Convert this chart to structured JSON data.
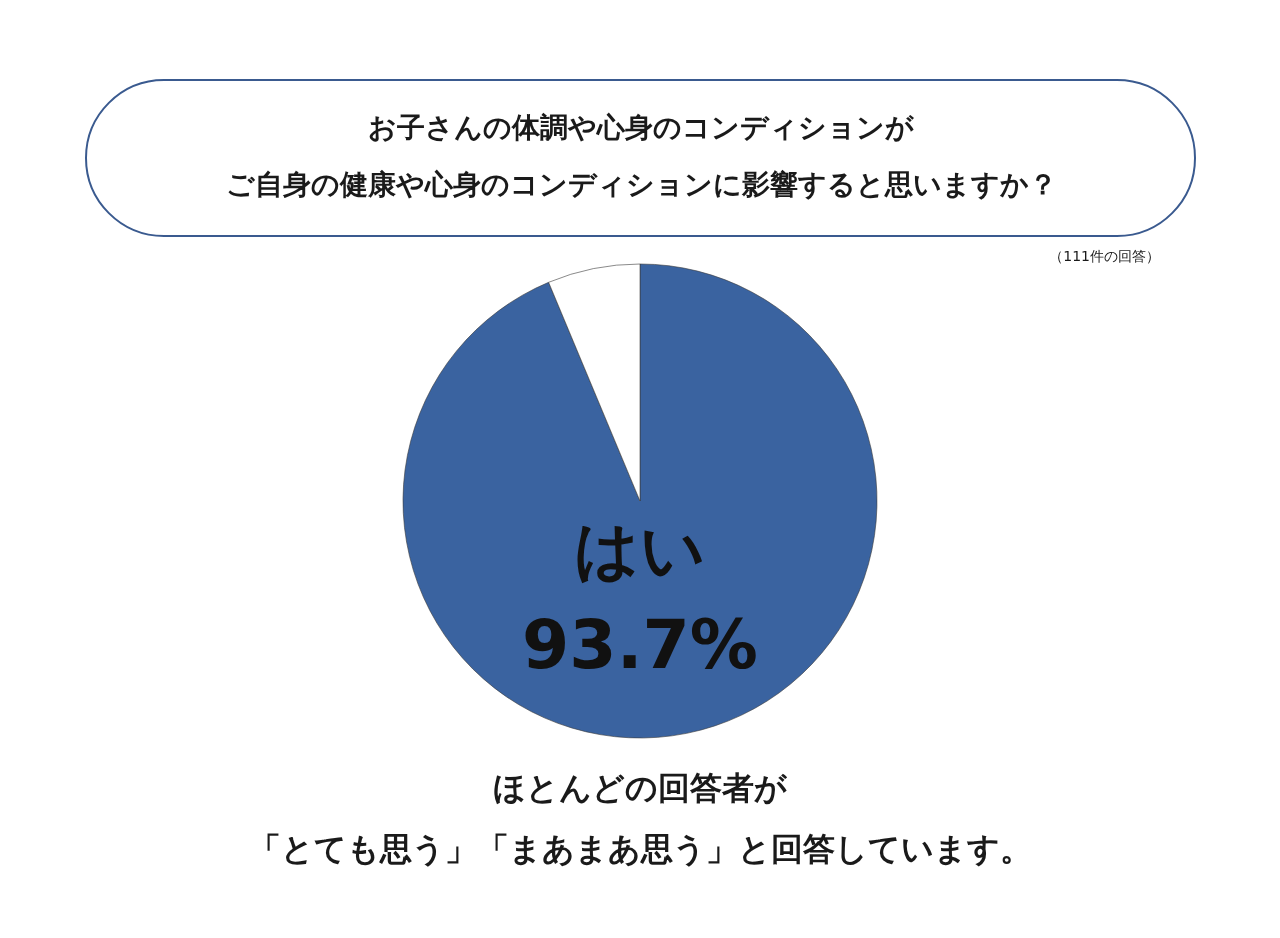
{
  "chart_data": {
    "type": "pie",
    "title": "お子さんの体調や心身のコンディションが",
    "subtitle": "ご自身の健康や心身のコンディションに影響すると思いますか？",
    "categories": [
      "はい",
      null
    ],
    "values": [
      93.7,
      6.3
    ],
    "value_labels": [
      "93.7%",
      null
    ],
    "colors": [
      "#3a63a0",
      "#ffffff"
    ],
    "annotations": [
      "（111件の回答）",
      "ほとんどの回答者が",
      "「とても思う」「まあまあ思う」と回答しています。"
    ]
  }
}
